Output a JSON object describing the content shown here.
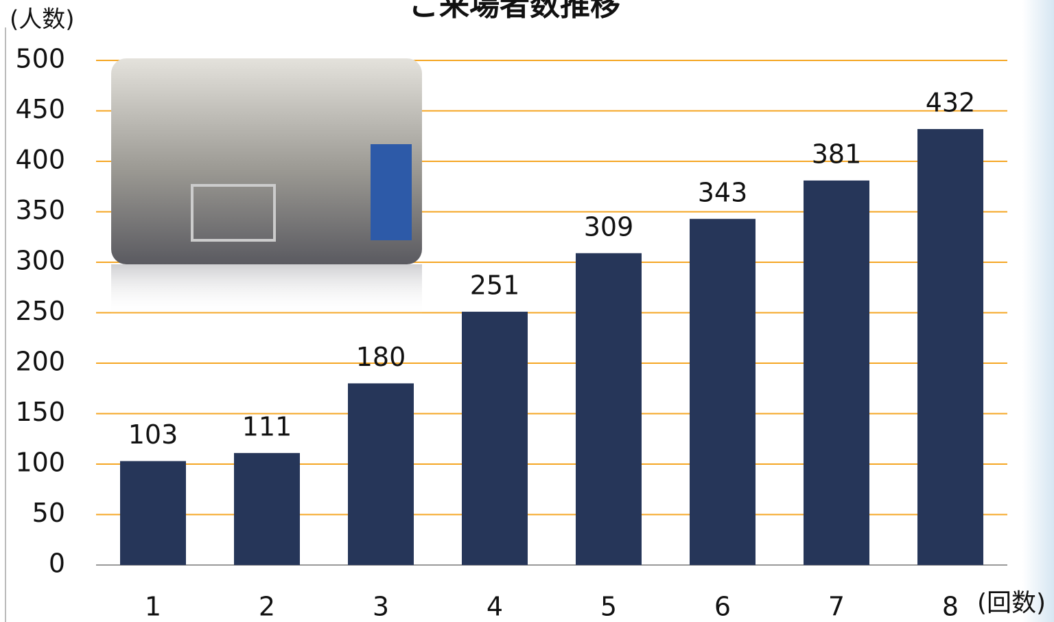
{
  "chart_data": {
    "type": "bar",
    "title": "ご来場者数推移",
    "y_label": "(人数)",
    "x_label": "(回数)",
    "categories": [
      "1",
      "2",
      "3",
      "4",
      "5",
      "6",
      "7",
      "8"
    ],
    "values": [
      103,
      111,
      180,
      251,
      309,
      343,
      381,
      432
    ],
    "color": "#263659",
    "ylim": [
      0,
      500
    ],
    "yticks": [
      0,
      50,
      100,
      150,
      200,
      250,
      300,
      350,
      400,
      450,
      500
    ],
    "grid": true,
    "grid_color": "#f5a623"
  }
}
